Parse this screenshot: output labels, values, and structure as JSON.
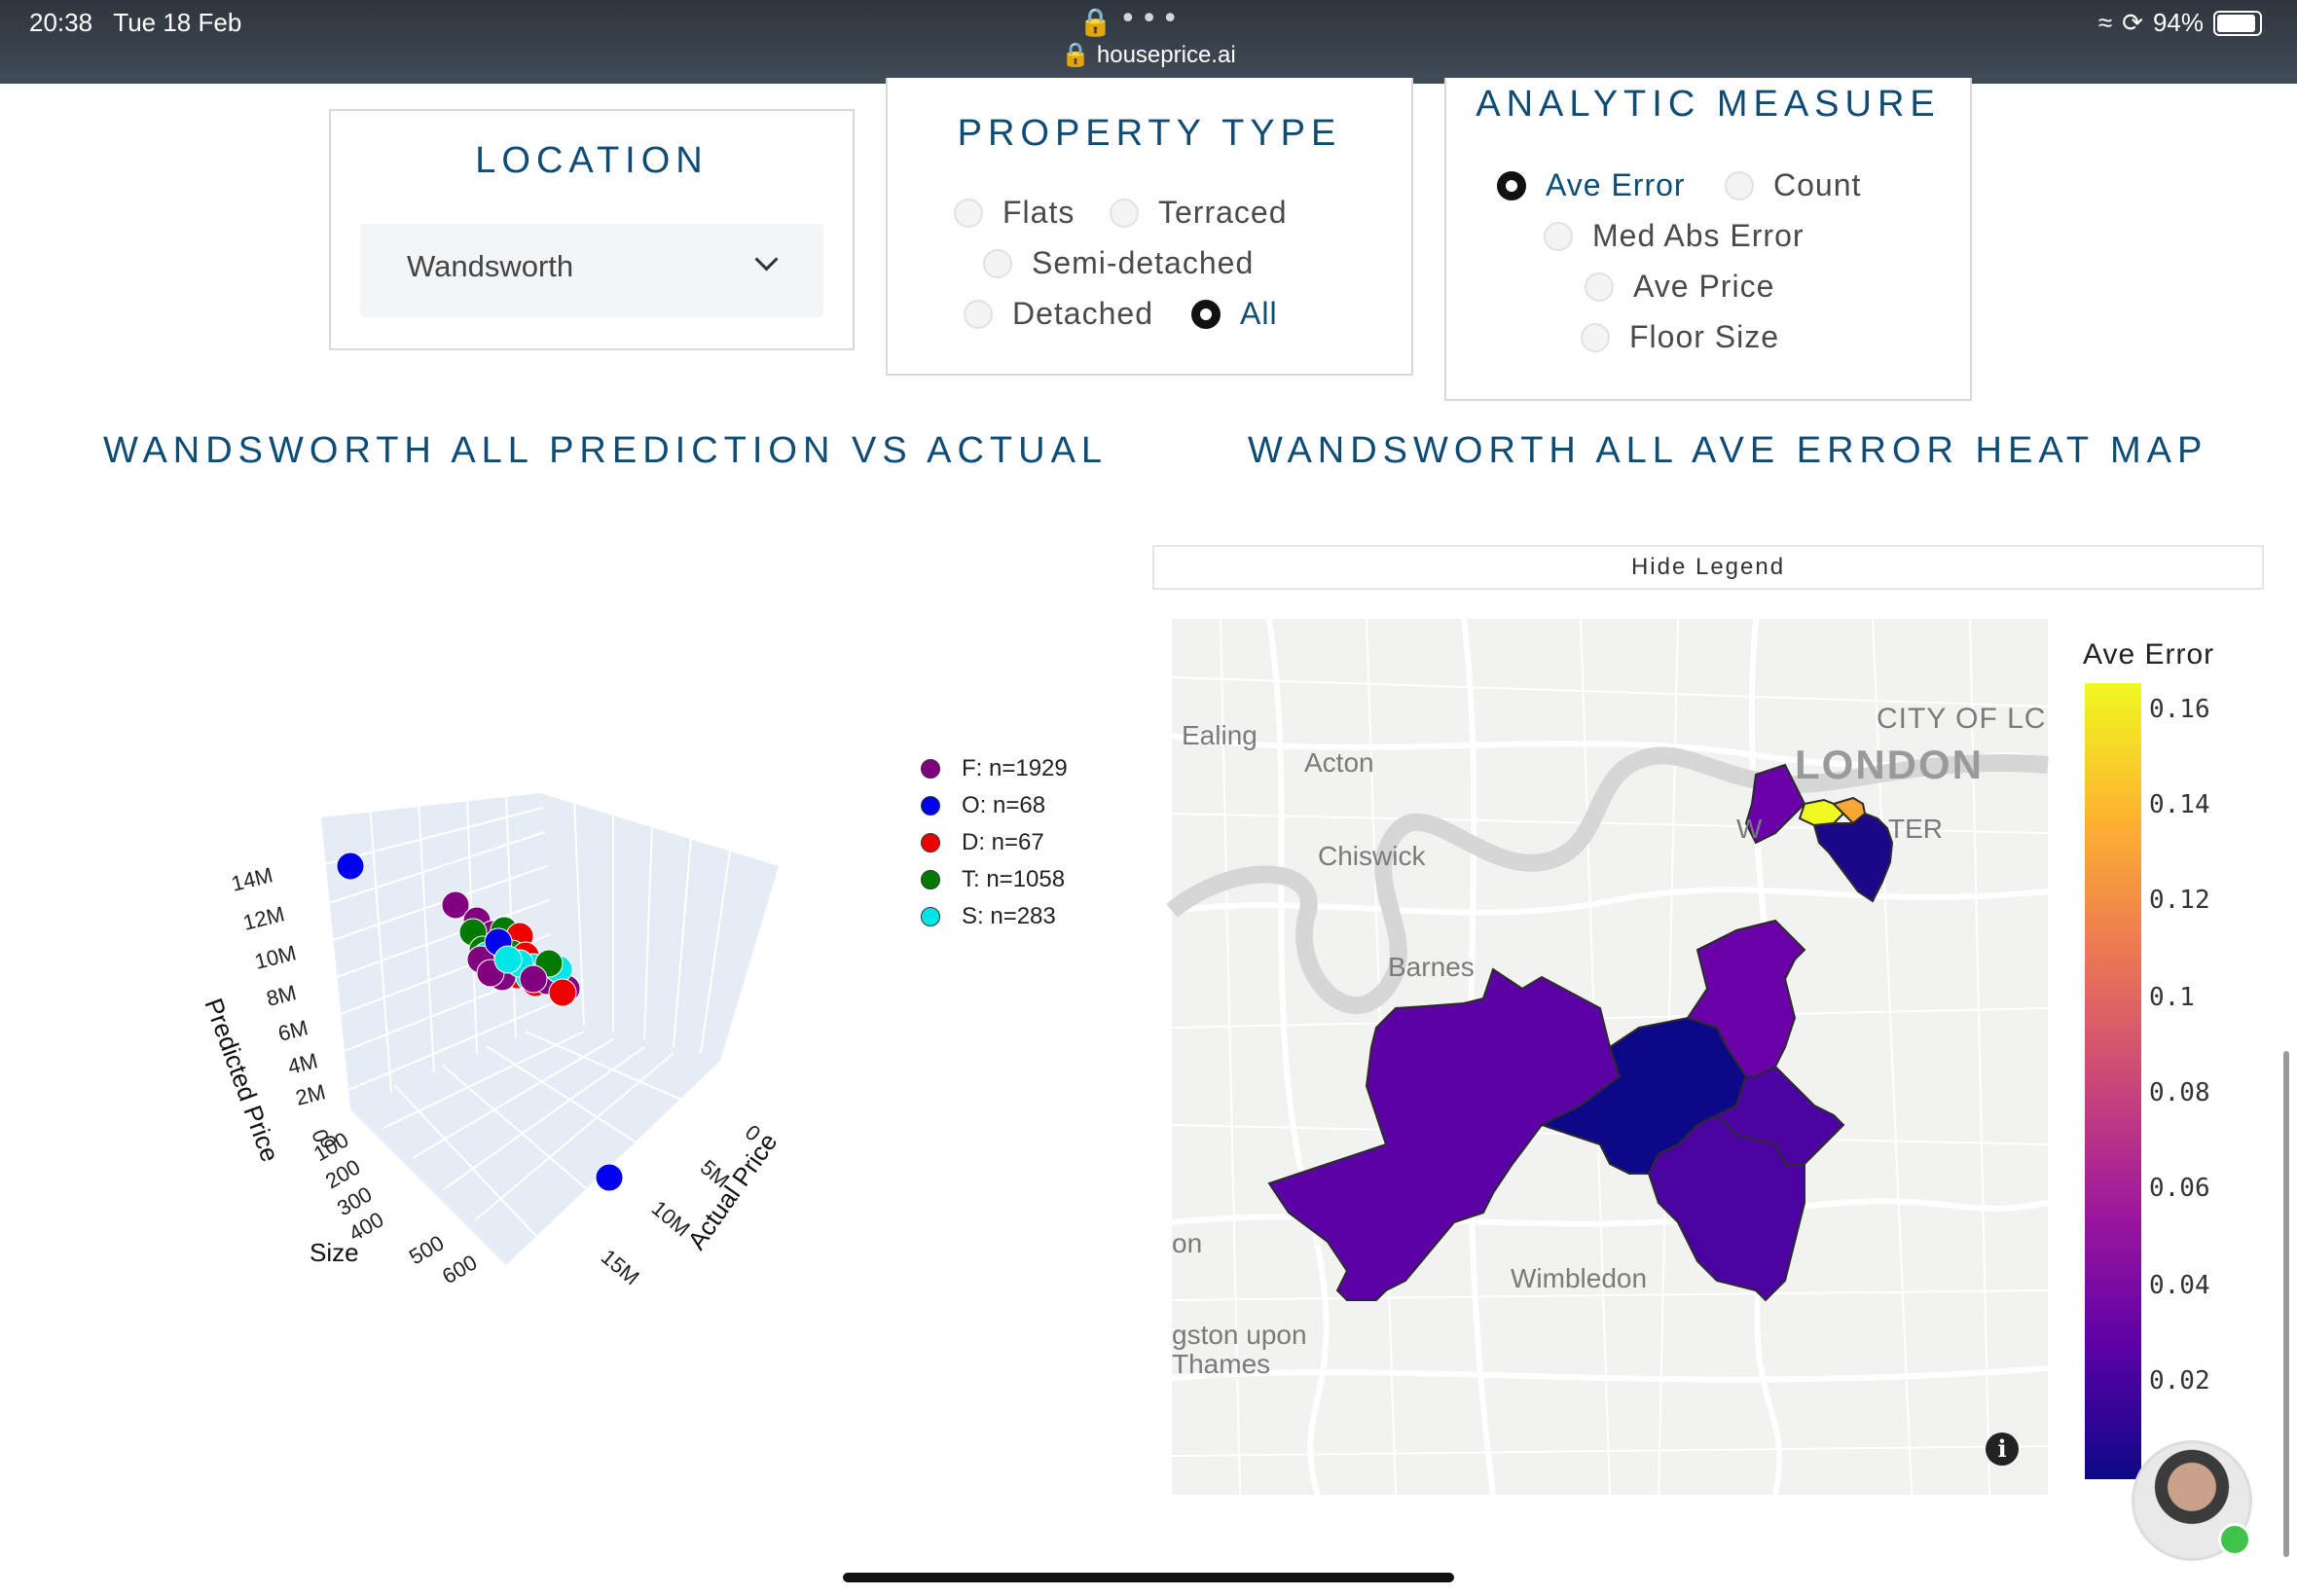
{
  "status_bar": {
    "time": "20:38",
    "date": "Tue 18 Feb",
    "url": "houseprice.ai",
    "battery": "94%",
    "battery_level": 0.94
  },
  "location_panel": {
    "title": "LOCATION",
    "selected": "Wandsworth"
  },
  "property_type_panel": {
    "title": "PROPERTY TYPE",
    "options": [
      "Flats",
      "Terraced",
      "Semi-detached",
      "Detached",
      "All"
    ],
    "selected": "All"
  },
  "analytic_panel": {
    "title": "ANALYTIC MEASURE",
    "options": [
      "Ave Error",
      "Count",
      "Med Abs Error",
      "Ave Price",
      "Floor Size"
    ],
    "selected": "Ave Error"
  },
  "scatter_section": {
    "title": "WANDSWORTH ALL PREDICTION VS ACTUAL"
  },
  "heatmap_section": {
    "title": "WANDSWORTH ALL AVE ERROR HEAT MAP",
    "hide_legend_label": "Hide Legend"
  },
  "chart_data": [
    {
      "type": "scatter",
      "title": "",
      "axis_labels": {
        "x": "Actual Price",
        "y": "Predicted Price",
        "z": "Size"
      },
      "predicted_ticks": [
        "14M",
        "12M",
        "10M",
        "8M",
        "6M",
        "4M",
        "2M",
        "0"
      ],
      "size_ticks": [
        "0",
        "100",
        "200",
        "300",
        "400",
        "500",
        "600"
      ],
      "actual_ticks": [
        "0",
        "5M",
        "10M",
        "15M"
      ],
      "legend": [
        {
          "name": "F: n=1929",
          "color": "#800080"
        },
        {
          "name": "O: n=68",
          "color": "#0000ee"
        },
        {
          "name": "D: n=67",
          "color": "#ee0000"
        },
        {
          "name": "T: n=1058",
          "color": "#007a00"
        },
        {
          "name": "S: n=283",
          "color": "#00e5e5"
        }
      ]
    },
    {
      "type": "heatmap",
      "title": "",
      "colorbar_title": "Ave Error",
      "colorbar_ticks": [
        "0.16",
        "0.14",
        "0.12",
        "0.1",
        "0.08",
        "0.06",
        "0.04",
        "0.02"
      ],
      "colorscale": [
        "#f0f921",
        "#fdb42f",
        "#ed7953",
        "#cc4778",
        "#9c179e",
        "#5c01a6",
        "#0d0887"
      ],
      "map_labels": [
        "Ealing",
        "Acton",
        "Chiswick",
        "Barnes",
        "LONDON",
        "CITY OF LC",
        "W",
        "TER",
        "Wimbledon",
        "gston upon",
        "Thames",
        "on"
      ],
      "regions": [
        {
          "color": "#5c01a6",
          "value": 0.025
        },
        {
          "color": "#0d0887",
          "value": 0.005
        },
        {
          "color": "#6a00a8",
          "value": 0.03
        },
        {
          "color": "#4c02a1",
          "value": 0.02
        },
        {
          "color": "#4a02a0",
          "value": 0.02
        },
        {
          "color": "#6900a8",
          "value": 0.03
        },
        {
          "color": "#f0f921",
          "value": 0.16
        },
        {
          "color": "#fca636",
          "value": 0.13
        },
        {
          "color": "#1a0888",
          "value": 0.008
        }
      ]
    }
  ],
  "info_icon": "i"
}
